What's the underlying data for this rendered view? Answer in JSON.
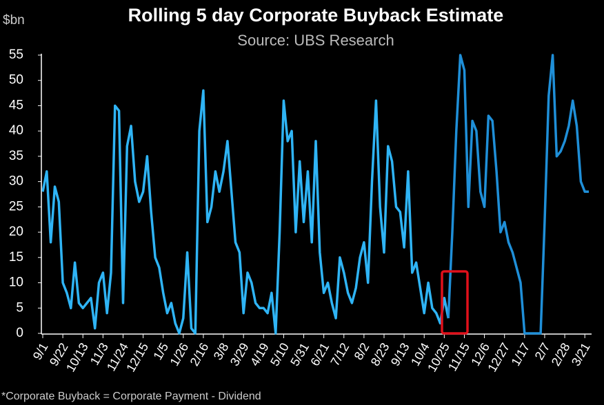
{
  "chart_data": {
    "type": "line",
    "title": "Rolling 5 day Corporate Buyback Estimate",
    "subtitle": "Source: UBS Research",
    "y_label": "$bn",
    "footnote": "*Corporate Buyback = Corporate Payment - Dividend",
    "categories": [
      "9/1",
      null,
      null,
      null,
      null,
      "9/22",
      null,
      null,
      null,
      null,
      "10/13",
      null,
      null,
      null,
      null,
      "11/3",
      null,
      null,
      null,
      null,
      "11/24",
      null,
      null,
      null,
      null,
      "12/15",
      null,
      null,
      null,
      null,
      "1/5",
      null,
      null,
      null,
      null,
      "1/26",
      null,
      null,
      null,
      null,
      "2/16",
      null,
      null,
      null,
      null,
      "3/8",
      null,
      null,
      null,
      null,
      "3/29",
      null,
      null,
      null,
      null,
      "4/19",
      null,
      null,
      null,
      null,
      "5/10",
      null,
      null,
      null,
      null,
      "5/31",
      null,
      null,
      null,
      null,
      "6/21",
      null,
      null,
      null,
      null,
      "7/12",
      null,
      null,
      null,
      null,
      "8/2",
      null,
      null,
      null,
      null,
      "8/23",
      null,
      null,
      null,
      null,
      "9/13",
      null,
      null,
      null,
      null,
      "10/4",
      null,
      null,
      null,
      null,
      "10/25",
      null,
      null,
      null,
      null,
      "11/15",
      null,
      null,
      null,
      null,
      "12/6",
      null,
      null,
      null,
      null,
      "12/27",
      null,
      null,
      null,
      null,
      "1/17",
      null,
      null,
      null,
      null,
      "2/7",
      null,
      null,
      null,
      null,
      "2/28",
      null,
      null,
      null,
      null,
      "3/21",
      null
    ],
    "series": [
      {
        "name": null,
        "color": "#2fb4f5",
        "values": [
          28,
          32,
          18,
          29,
          26,
          10,
          8,
          5,
          14,
          6,
          5,
          6,
          7,
          1,
          10,
          12,
          4,
          12,
          45,
          44,
          6,
          37,
          41,
          30,
          26,
          28,
          35,
          24,
          15,
          13,
          8,
          4,
          6,
          2,
          0,
          3,
          16,
          1,
          0,
          40,
          48,
          22,
          25,
          32,
          28,
          32,
          38,
          28,
          18,
          16,
          4,
          12,
          10,
          6,
          5,
          5,
          4,
          8,
          0,
          20,
          46,
          38,
          40,
          20,
          34,
          22,
          32,
          18,
          38,
          16,
          8,
          10,
          6,
          3,
          15,
          12,
          8,
          6,
          9,
          15,
          18,
          10,
          30,
          46,
          25,
          16,
          37,
          34,
          25,
          24,
          17,
          32,
          12,
          14,
          9,
          4,
          10,
          5,
          4,
          2,
          7,
          3,
          null,
          null,
          null,
          null,
          null,
          null,
          null,
          null,
          null,
          null,
          null,
          null,
          null,
          null,
          null,
          null,
          null,
          null,
          null,
          null,
          null,
          null,
          null,
          null,
          null,
          null,
          null,
          null,
          null,
          null,
          null,
          null,
          null,
          null,
          null
        ]
      },
      {
        "name": null,
        "color": "#1f8fd8",
        "values": [
          null,
          null,
          null,
          null,
          null,
          null,
          null,
          null,
          null,
          null,
          null,
          null,
          null,
          null,
          null,
          null,
          null,
          null,
          null,
          null,
          null,
          null,
          null,
          null,
          null,
          null,
          null,
          null,
          null,
          null,
          null,
          null,
          null,
          null,
          null,
          null,
          null,
          null,
          null,
          null,
          null,
          null,
          null,
          null,
          null,
          null,
          null,
          null,
          null,
          null,
          null,
          null,
          null,
          null,
          null,
          null,
          null,
          null,
          null,
          null,
          null,
          null,
          null,
          null,
          null,
          null,
          null,
          null,
          null,
          null,
          null,
          null,
          null,
          null,
          null,
          null,
          null,
          null,
          null,
          null,
          null,
          null,
          null,
          null,
          null,
          null,
          null,
          null,
          null,
          null,
          null,
          null,
          null,
          null,
          null,
          null,
          null,
          null,
          null,
          null,
          null,
          3,
          20,
          40,
          55,
          52,
          25,
          42,
          40,
          28,
          25,
          43,
          42,
          32,
          20,
          22,
          18,
          16,
          13,
          10,
          0,
          0,
          0,
          0,
          0,
          22,
          47,
          55,
          35,
          36,
          38,
          41,
          46,
          41,
          30,
          28,
          28
        ]
      }
    ],
    "ylim": [
      0,
      55
    ],
    "yticks": [
      0,
      5,
      10,
      15,
      20,
      25,
      30,
      35,
      40,
      45,
      50,
      55
    ],
    "grid": false
  }
}
